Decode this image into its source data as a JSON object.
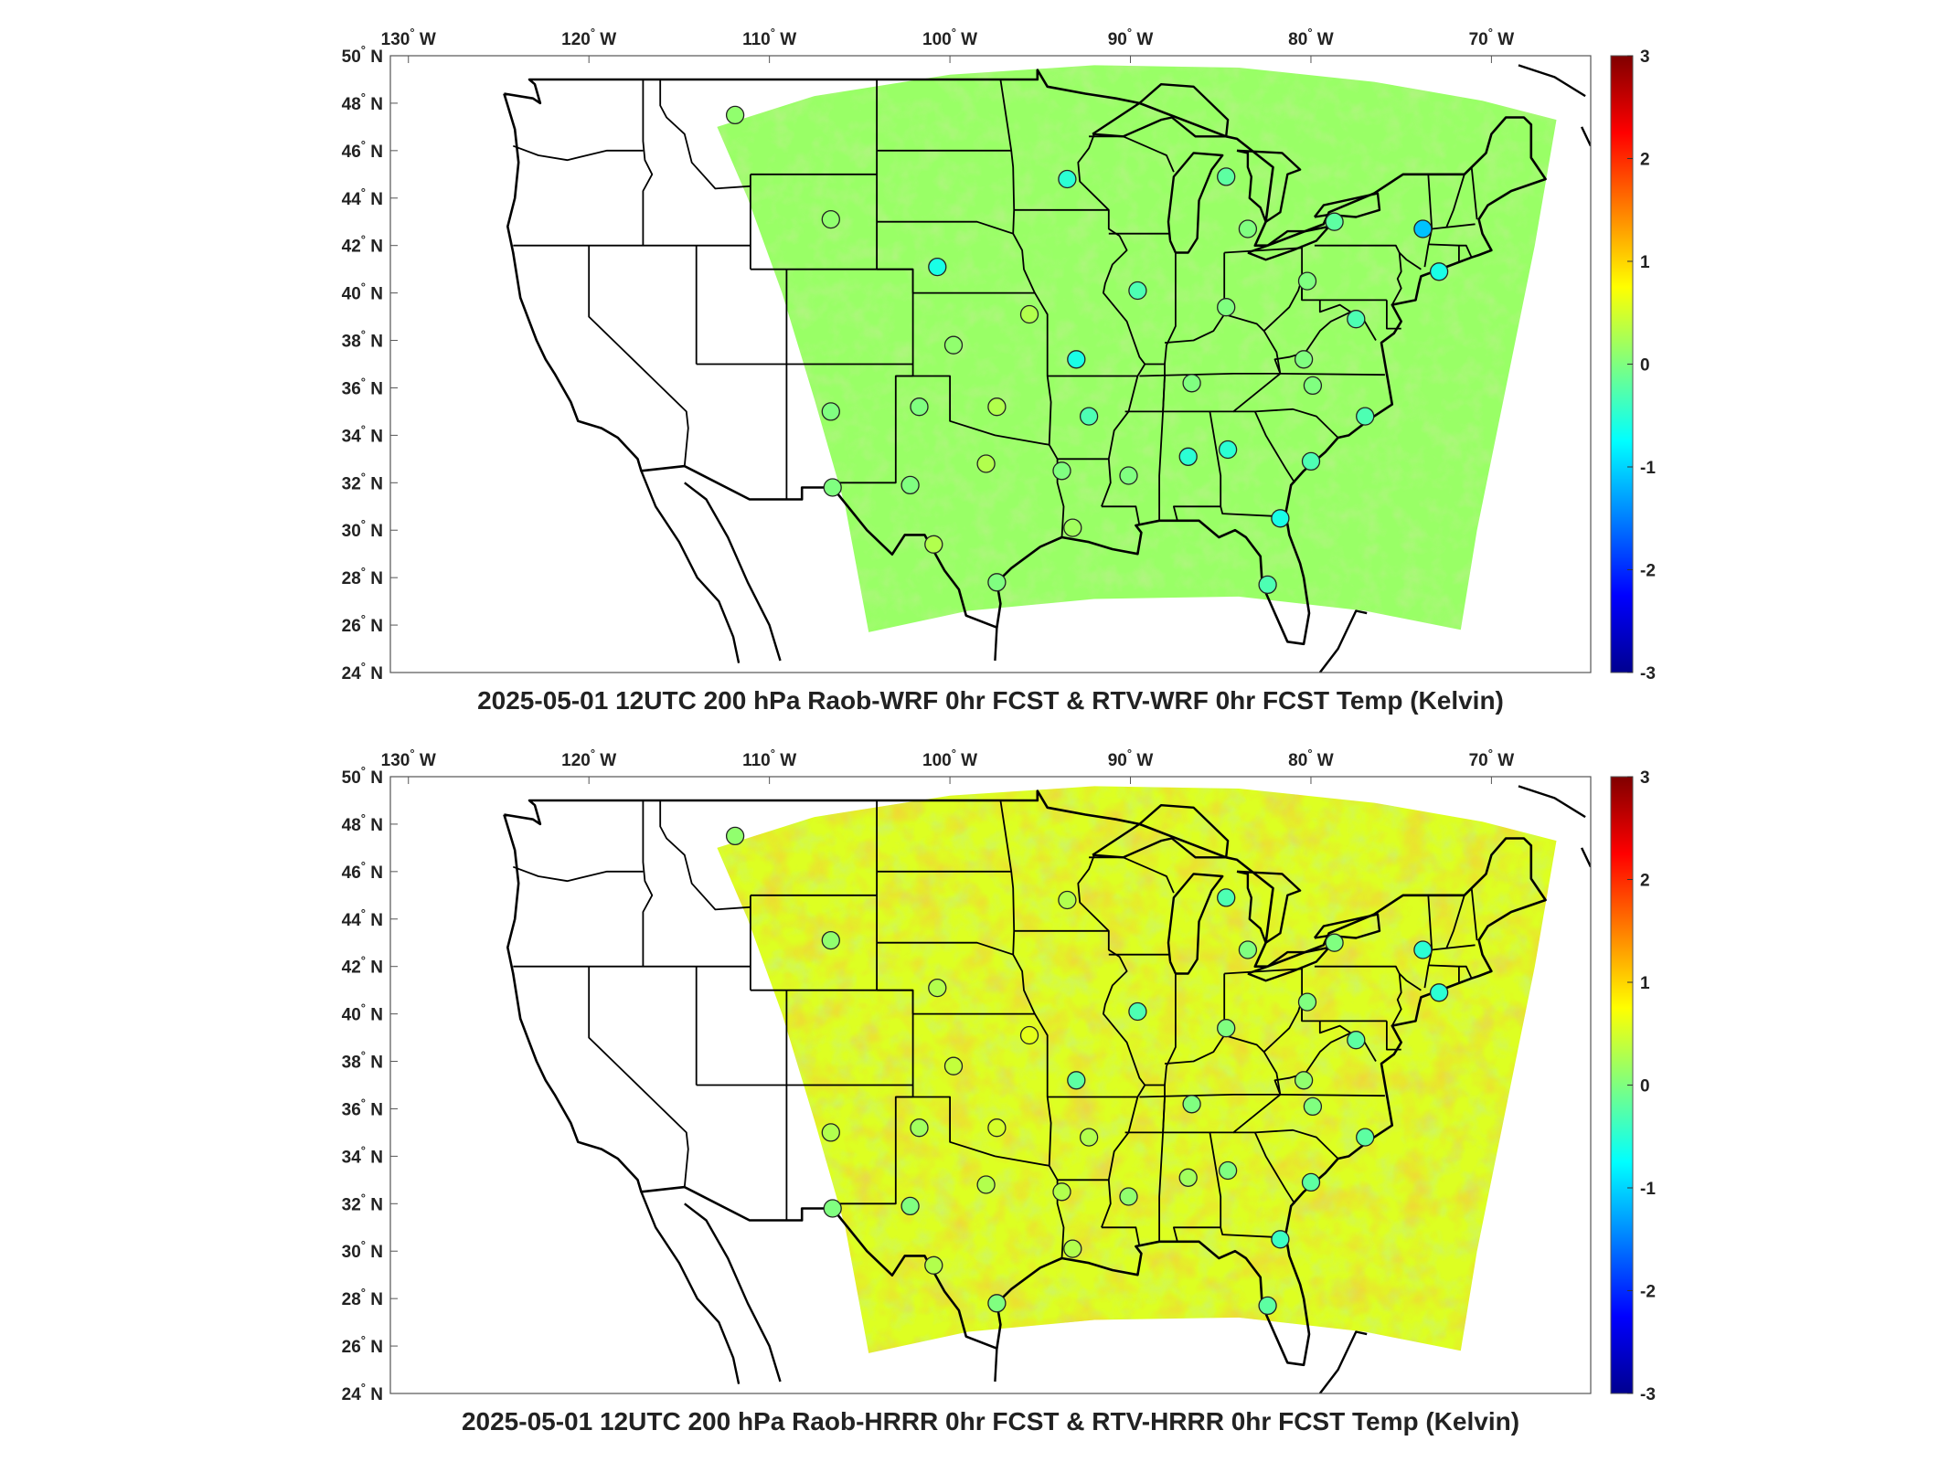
{
  "panels": [
    {
      "title": "2025-05-01 12UTC 200 hPa Raob-WRF 0hr FCST & RTV-WRF 0hr FCST Temp (Kelvin)",
      "field_bias": 0.15,
      "stations": [
        {
          "lon": -111.9,
          "lat": 47.5,
          "value": 0.1
        },
        {
          "lon": -106.6,
          "lat": 43.1,
          "value": 0.1
        },
        {
          "lon": -100.7,
          "lat": 41.1,
          "value": -0.6
        },
        {
          "lon": -99.8,
          "lat": 37.8,
          "value": 0.1
        },
        {
          "lon": -106.6,
          "lat": 35.0,
          "value": 0.0
        },
        {
          "lon": -101.7,
          "lat": 35.2,
          "value": 0.0
        },
        {
          "lon": -106.5,
          "lat": 31.8,
          "value": 0.0
        },
        {
          "lon": -102.2,
          "lat": 31.9,
          "value": 0.0
        },
        {
          "lon": -98.0,
          "lat": 32.8,
          "value": 0.3
        },
        {
          "lon": -97.4,
          "lat": 35.2,
          "value": 0.3
        },
        {
          "lon": -100.9,
          "lat": 29.4,
          "value": 0.3
        },
        {
          "lon": -97.4,
          "lat": 27.8,
          "value": 0.0
        },
        {
          "lon": -95.6,
          "lat": 39.1,
          "value": 0.3
        },
        {
          "lon": -93.5,
          "lat": 44.8,
          "value": -0.5
        },
        {
          "lon": -93.0,
          "lat": 37.2,
          "value": -0.6
        },
        {
          "lon": -92.3,
          "lat": 34.8,
          "value": -0.3
        },
        {
          "lon": -93.8,
          "lat": 32.5,
          "value": 0.0
        },
        {
          "lon": -93.2,
          "lat": 30.1,
          "value": 0.2
        },
        {
          "lon": -89.6,
          "lat": 40.1,
          "value": -0.3
        },
        {
          "lon": -86.6,
          "lat": 36.2,
          "value": 0.0
        },
        {
          "lon": -90.1,
          "lat": 32.3,
          "value": 0.0
        },
        {
          "lon": -86.8,
          "lat": 33.1,
          "value": -0.5
        },
        {
          "lon": -84.6,
          "lat": 33.4,
          "value": -0.5
        },
        {
          "lon": -84.7,
          "lat": 44.9,
          "value": -0.2
        },
        {
          "lon": -83.5,
          "lat": 42.7,
          "value": 0.0
        },
        {
          "lon": -84.7,
          "lat": 39.4,
          "value": 0.0
        },
        {
          "lon": -80.2,
          "lat": 40.5,
          "value": 0.0
        },
        {
          "lon": -78.7,
          "lat": 43.0,
          "value": -0.2
        },
        {
          "lon": -80.4,
          "lat": 37.2,
          "value": 0.0
        },
        {
          "lon": -79.9,
          "lat": 36.1,
          "value": 0.0
        },
        {
          "lon": -77.5,
          "lat": 38.9,
          "value": -0.3
        },
        {
          "lon": -77.0,
          "lat": 34.8,
          "value": -0.3
        },
        {
          "lon": -80.0,
          "lat": 32.9,
          "value": -0.3
        },
        {
          "lon": -81.7,
          "lat": 30.5,
          "value": -0.6
        },
        {
          "lon": -82.4,
          "lat": 27.7,
          "value": -0.3
        },
        {
          "lon": -73.8,
          "lat": 42.7,
          "value": -1.1
        },
        {
          "lon": -72.9,
          "lat": 40.9,
          "value": -0.6
        }
      ]
    },
    {
      "title": "2025-05-01 12UTC 200 hPa Raob-HRRR 0hr FCST & RTV-HRRR 0hr FCST Temp (Kelvin)",
      "field_bias": 0.55,
      "stations": [
        {
          "lon": -111.9,
          "lat": 47.5,
          "value": 0.1
        },
        {
          "lon": -106.6,
          "lat": 43.1,
          "value": 0.1
        },
        {
          "lon": -100.7,
          "lat": 41.1,
          "value": 0.3
        },
        {
          "lon": -99.8,
          "lat": 37.8,
          "value": 0.4
        },
        {
          "lon": -106.6,
          "lat": 35.0,
          "value": 0.3
        },
        {
          "lon": -101.7,
          "lat": 35.2,
          "value": 0.2
        },
        {
          "lon": -106.5,
          "lat": 31.8,
          "value": 0.0
        },
        {
          "lon": -102.2,
          "lat": 31.9,
          "value": 0.0
        },
        {
          "lon": -98.0,
          "lat": 32.8,
          "value": 0.3
        },
        {
          "lon": -97.4,
          "lat": 35.2,
          "value": 0.5
        },
        {
          "lon": -100.9,
          "lat": 29.4,
          "value": 0.3
        },
        {
          "lon": -97.4,
          "lat": 27.8,
          "value": 0.0
        },
        {
          "lon": -95.6,
          "lat": 39.1,
          "value": 0.6
        },
        {
          "lon": -93.5,
          "lat": 44.8,
          "value": 0.3
        },
        {
          "lon": -93.0,
          "lat": 37.2,
          "value": -0.2
        },
        {
          "lon": -92.3,
          "lat": 34.8,
          "value": 0.3
        },
        {
          "lon": -93.8,
          "lat": 32.5,
          "value": 0.3
        },
        {
          "lon": -93.2,
          "lat": 30.1,
          "value": 0.3
        },
        {
          "lon": -89.6,
          "lat": 40.1,
          "value": -0.3
        },
        {
          "lon": -86.6,
          "lat": 36.2,
          "value": 0.0
        },
        {
          "lon": -90.1,
          "lat": 32.3,
          "value": 0.1
        },
        {
          "lon": -86.8,
          "lat": 33.1,
          "value": 0.2
        },
        {
          "lon": -84.6,
          "lat": 33.4,
          "value": 0.0
        },
        {
          "lon": -84.7,
          "lat": 44.9,
          "value": -0.3
        },
        {
          "lon": -83.5,
          "lat": 42.7,
          "value": 0.0
        },
        {
          "lon": -84.7,
          "lat": 39.4,
          "value": 0.0
        },
        {
          "lon": -80.2,
          "lat": 40.5,
          "value": 0.0
        },
        {
          "lon": -78.7,
          "lat": 43.0,
          "value": 0.0
        },
        {
          "lon": -80.4,
          "lat": 37.2,
          "value": 0.1
        },
        {
          "lon": -79.9,
          "lat": 36.1,
          "value": 0.0
        },
        {
          "lon": -77.5,
          "lat": 38.9,
          "value": -0.2
        },
        {
          "lon": -77.0,
          "lat": 34.8,
          "value": -0.2
        },
        {
          "lon": -80.0,
          "lat": 32.9,
          "value": -0.2
        },
        {
          "lon": -81.7,
          "lat": 30.5,
          "value": -0.4
        },
        {
          "lon": -82.4,
          "lat": 27.7,
          "value": -0.2
        },
        {
          "lon": -73.8,
          "lat": 42.7,
          "value": -0.5
        },
        {
          "lon": -72.9,
          "lat": 40.9,
          "value": -0.5
        }
      ]
    }
  ],
  "map": {
    "lon_ticks": [
      -130,
      -120,
      -110,
      -100,
      -90,
      -80,
      -70
    ],
    "lon_tick_labels": [
      "130",
      "120",
      "110",
      "100",
      "90",
      "80",
      "70"
    ],
    "lon_hemisphere": "W",
    "lat_ticks": [
      24,
      26,
      28,
      30,
      32,
      34,
      36,
      38,
      40,
      42,
      44,
      46,
      48,
      50
    ],
    "lat_tick_labels": [
      "24",
      "26",
      "28",
      "30",
      "32",
      "34",
      "36",
      "38",
      "40",
      "42",
      "44",
      "46",
      "48",
      "50"
    ],
    "lat_hemisphere": "N",
    "degree_symbol": "°",
    "lon_range": [
      -131,
      -64.5
    ],
    "lat_range": [
      24,
      50
    ]
  },
  "colorbar": {
    "range": [
      -3,
      3
    ],
    "ticks": [
      -3,
      -2,
      -1,
      0,
      1,
      2,
      3
    ],
    "tick_labels": [
      "-3",
      "-2",
      "-1",
      "0",
      "1",
      "2",
      "3"
    ],
    "colormap": "jet"
  }
}
